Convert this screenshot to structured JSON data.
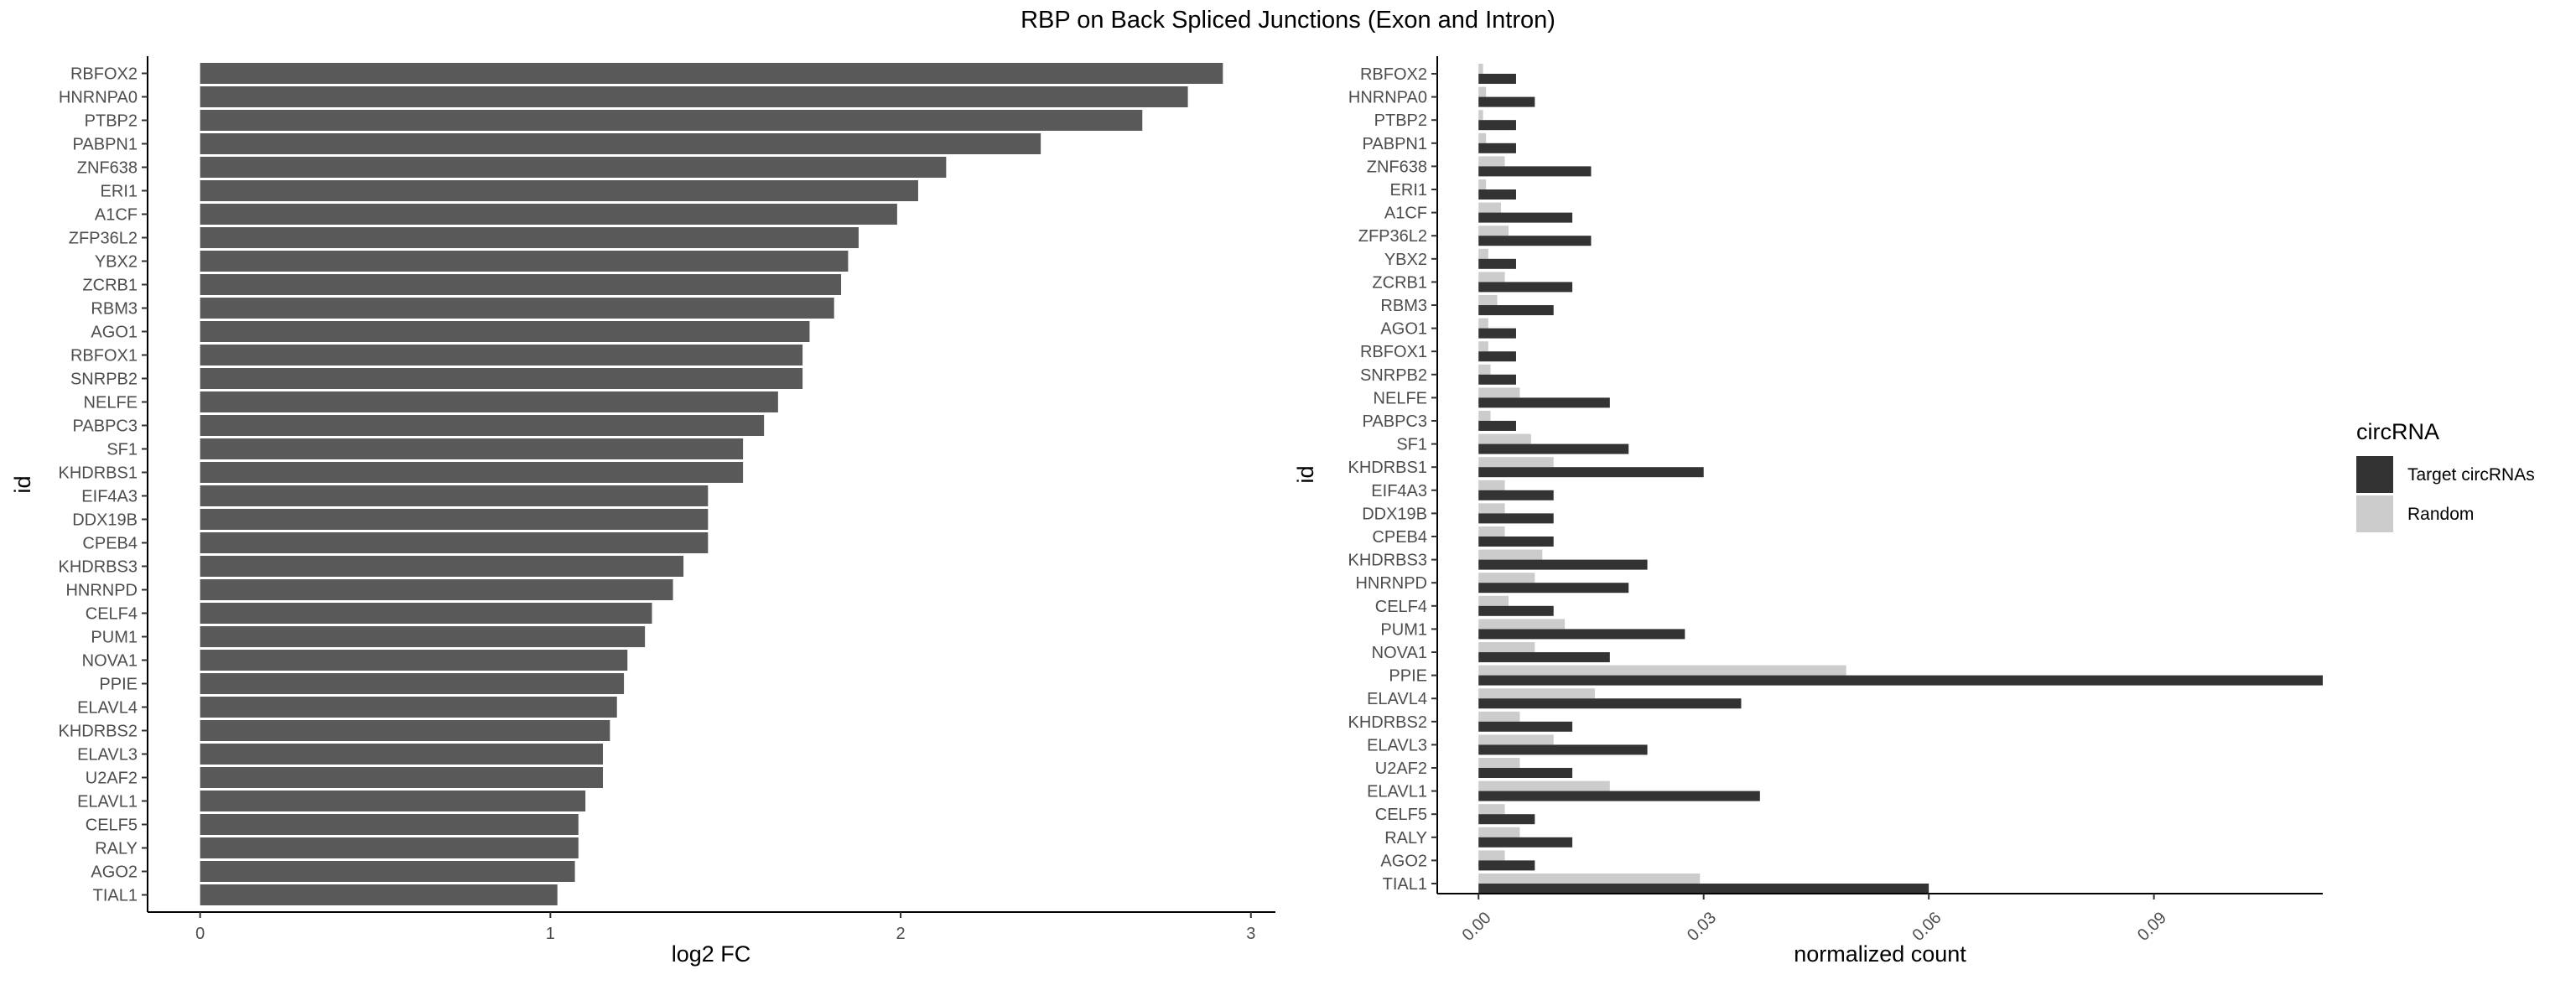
{
  "title": "RBP on Back Spliced Junctions (Exon and Intron)",
  "chart_data": [
    {
      "type": "bar",
      "orientation": "horizontal",
      "xlabel": "log2 FC",
      "ylabel": "id",
      "xlim": [
        -0.15,
        3.07
      ],
      "xticks": [
        "0",
        "1",
        "2",
        "3"
      ],
      "grid": false,
      "categories": [
        "RBFOX2",
        "HNRNPA0",
        "PTBP2",
        "PABPN1",
        "ZNF638",
        "ERI1",
        "A1CF",
        "ZFP36L2",
        "YBX2",
        "ZCRB1",
        "RBM3",
        "AGO1",
        "RBFOX1",
        "SNRPB2",
        "NELFE",
        "PABPC3",
        "SF1",
        "KHDRBS1",
        "EIF4A3",
        "DDX19B",
        "CPEB4",
        "KHDRBS3",
        "HNRNPD",
        "CELF4",
        "PUM1",
        "NOVA1",
        "PPIE",
        "ELAVL4",
        "KHDRBS2",
        "ELAVL3",
        "U2AF2",
        "ELAVL1",
        "CELF5",
        "RALY",
        "AGO2",
        "TIAL1"
      ],
      "values": [
        2.92,
        2.82,
        2.69,
        2.4,
        2.13,
        2.05,
        1.99,
        1.88,
        1.85,
        1.83,
        1.81,
        1.74,
        1.72,
        1.72,
        1.65,
        1.61,
        1.55,
        1.55,
        1.45,
        1.45,
        1.45,
        1.38,
        1.35,
        1.29,
        1.27,
        1.22,
        1.21,
        1.19,
        1.17,
        1.15,
        1.15,
        1.1,
        1.08,
        1.08,
        1.07,
        1.02
      ],
      "color": "#595959"
    },
    {
      "type": "bar",
      "orientation": "horizontal",
      "grouped": true,
      "xlabel": "normalized count",
      "ylabel": "id",
      "xlim": [
        -0.0055,
        0.1125
      ],
      "xticks": [
        "0.00",
        "0.03",
        "0.06",
        "0.09"
      ],
      "grid": false,
      "legend_title": "circRNA",
      "legend_position": "right",
      "categories": [
        "RBFOX2",
        "HNRNPA0",
        "PTBP2",
        "PABPN1",
        "ZNF638",
        "ERI1",
        "A1CF",
        "ZFP36L2",
        "YBX2",
        "ZCRB1",
        "RBM3",
        "AGO1",
        "RBFOX1",
        "SNRPB2",
        "NELFE",
        "PABPC3",
        "SF1",
        "KHDRBS1",
        "EIF4A3",
        "DDX19B",
        "CPEB4",
        "KHDRBS3",
        "HNRNPD",
        "CELF4",
        "PUM1",
        "NOVA1",
        "PPIE",
        "ELAVL4",
        "KHDRBS2",
        "ELAVL3",
        "U2AF2",
        "ELAVL1",
        "CELF5",
        "RALY",
        "AGO2",
        "TIAL1"
      ],
      "series": [
        {
          "name": "Target circRNAs",
          "color": "#333333",
          "values": [
            0.005,
            0.0075,
            0.005,
            0.005,
            0.015,
            0.005,
            0.0125,
            0.015,
            0.005,
            0.0125,
            0.01,
            0.005,
            0.005,
            0.005,
            0.0175,
            0.005,
            0.02,
            0.03,
            0.01,
            0.01,
            0.01,
            0.0225,
            0.02,
            0.01,
            0.0275,
            0.0175,
            0.1125,
            0.035,
            0.0125,
            0.0225,
            0.0125,
            0.0375,
            0.0075,
            0.0125,
            0.0075,
            0.06
          ]
        },
        {
          "name": "Random",
          "color": "#cccccc",
          "values": [
            0.0006,
            0.001,
            0.0006,
            0.001,
            0.0035,
            0.001,
            0.003,
            0.004,
            0.0013,
            0.0035,
            0.0025,
            0.0013,
            0.0013,
            0.0016,
            0.0055,
            0.0016,
            0.007,
            0.01,
            0.0035,
            0.0035,
            0.0035,
            0.0085,
            0.0075,
            0.004,
            0.0115,
            0.0075,
            0.049,
            0.0155,
            0.0055,
            0.01,
            0.0055,
            0.0175,
            0.0035,
            0.0055,
            0.0035,
            0.0295
          ]
        }
      ]
    }
  ]
}
